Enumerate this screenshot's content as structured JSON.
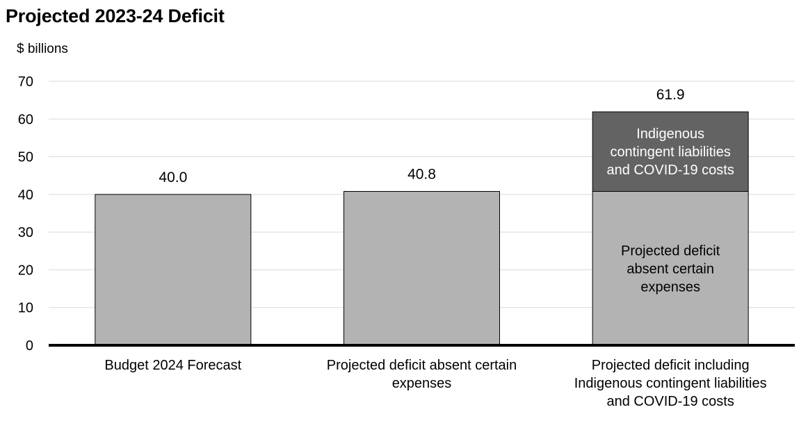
{
  "chart_data": {
    "type": "bar",
    "stacked": true,
    "title": "Projected 2023-24 Deficit",
    "ylabel": "$ billions",
    "xlabel": "",
    "ylim": [
      0,
      70
    ],
    "yticks": [
      0,
      10,
      20,
      30,
      40,
      50,
      60,
      70
    ],
    "grid": true,
    "legend": "none",
    "categories": [
      [
        "Budget 2024 Forecast"
      ],
      [
        "Projected deficit absent certain",
        "expenses"
      ],
      [
        "Projected deficit including",
        "Indigenous contingent liabilities",
        "and COVID-19 costs"
      ]
    ],
    "series": [
      {
        "values": [
          40.0,
          40.8,
          40.8
        ],
        "color": "#b3b3b3",
        "segment_labels": [
          null,
          null,
          [
            "Projected deficit",
            "absent certain",
            "expenses"
          ]
        ]
      },
      {
        "values": [
          0,
          0,
          21.1
        ],
        "color": "#636363",
        "segment_labels": [
          null,
          null,
          [
            "Indigenous",
            "contingent liabilities",
            "and COVID-19 costs"
          ]
        ]
      }
    ],
    "totals": [
      "40.0",
      "40.8",
      "61.9"
    ]
  }
}
